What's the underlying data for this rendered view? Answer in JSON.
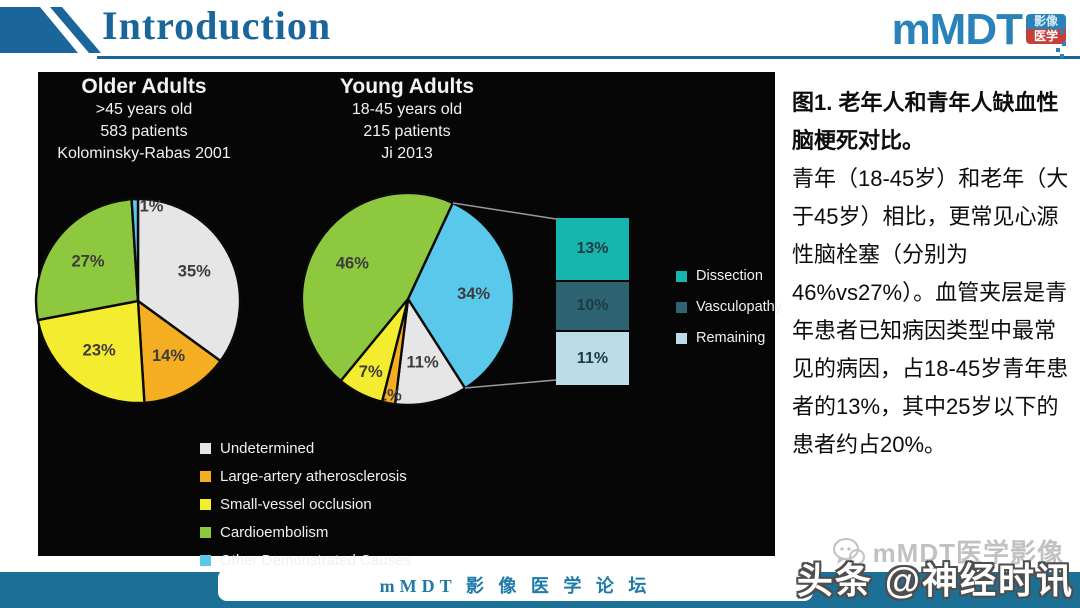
{
  "header": {
    "title": "Introduction",
    "accent_color": "#1a6599",
    "logo": {
      "wordmark": "mMDT",
      "badge_line1": "影像",
      "badge_line2": "医学"
    }
  },
  "chart_data": [
    {
      "type": "pie",
      "title": "Older Adults",
      "subtitles": [
        ">45 years old",
        "583 patients",
        "Kolominsky-Rabas 2001"
      ],
      "start_angle": 0,
      "slices": [
        {
          "label": "Undetermined",
          "value": 35,
          "color": "#e6e6e6"
        },
        {
          "label": "Large-artery atherosclerosis",
          "value": 14,
          "color": "#f5ad21"
        },
        {
          "label": "Small-vessel occlusion",
          "value": 23,
          "color": "#f4ec2e"
        },
        {
          "label": "Cardioembolism",
          "value": 27,
          "color": "#8dc83e"
        },
        {
          "label": "Other Demonstrated Causes",
          "value": 1,
          "color": "#5ac8ea"
        }
      ]
    },
    {
      "type": "pie",
      "title": "Young Adults",
      "subtitles": [
        "18-45 years old",
        "215 patients",
        "Ji 2013"
      ],
      "start_angle": 25,
      "slices": [
        {
          "label": "Other Demonstrated Causes",
          "value": 34,
          "color": "#5ac8ea"
        },
        {
          "label": "Undetermined",
          "value": 11,
          "color": "#e6e6e6"
        },
        {
          "label": "Large-artery atherosclerosis",
          "value": 2,
          "color": "#f5ad21"
        },
        {
          "label": "Small-vessel occlusion",
          "value": 7,
          "color": "#f4ec2e"
        },
        {
          "label": "Cardioembolism",
          "value": 46,
          "color": "#8dc83e"
        }
      ],
      "breakdown": {
        "labels": [
          "Dissection",
          "Vasculopathy",
          "Remaining"
        ],
        "values": [
          13,
          10,
          11
        ],
        "display": [
          "13%",
          "10%",
          "11%"
        ],
        "colors": [
          "#16b5ae",
          "#2e6372",
          "#bcdcea"
        ]
      }
    }
  ],
  "legend_side": [
    {
      "label": "Dissection",
      "color": "#16b5ae"
    },
    {
      "label": "Vasculopathy",
      "color": "#2e6372"
    },
    {
      "label": "Remaining",
      "color": "#bcdcea"
    }
  ],
  "legend_bottom": [
    {
      "label": "Undetermined",
      "color": "#e6e6e6"
    },
    {
      "label": "Large-artery atherosclerosis",
      "color": "#f5ad21"
    },
    {
      "label": "Small-vessel occlusion",
      "color": "#f4ec2e"
    },
    {
      "label": "Cardioembolism",
      "color": "#8dc83e"
    },
    {
      "label": "Other Demonstrated Causes",
      "color": "#5ac8ea"
    }
  ],
  "caption": {
    "heading": "图1. 老年人和青年人缺血性脑梗死对比。",
    "body": "青年（18-45岁）和老年（大于45岁）相比，更常见心源性脑栓塞（分别为46%vs27%）。血管夹层是青年患者已知病因类型中最常见的病因，占18-45岁青年患者的13%，其中25岁以下的患者约占20%。"
  },
  "watermarks": {
    "faint": "mMDT医学影像",
    "headline": "头条 @神经时讯"
  },
  "footer": {
    "banner": "mMDT 影 像 医 学 论 坛"
  }
}
